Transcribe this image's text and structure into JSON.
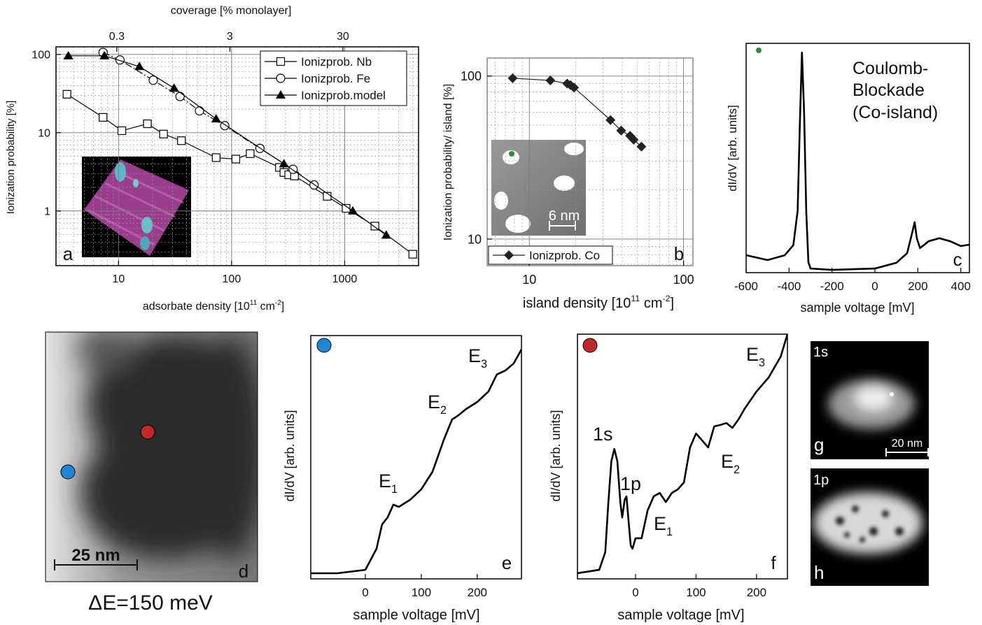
{
  "chart_data": [
    {
      "type": "line",
      "xscale": "log",
      "yscale": "log",
      "x2label": "coverage [% monolayer]",
      "xlabel_parts": [
        "adsorbate density [10",
        "11",
        " cm",
        "-2",
        "]"
      ],
      "ylabel": "Ionization probability [%]",
      "panel_label": "a",
      "xlim": [
        2.8,
        4500
      ],
      "ylim": [
        0.2,
        125
      ],
      "xticks": [
        10,
        100,
        1000
      ],
      "yticks": [
        1,
        10,
        100
      ],
      "x2lim": [
        0.087,
        140
      ],
      "x2ticks": [
        0.3,
        3,
        30
      ],
      "grid": true,
      "legend": "upper right",
      "series": [
        {
          "name": "Ionizprob. Nb",
          "marker": "square",
          "color": "#000000",
          "x": [
            3.5,
            7.3,
            10.7,
            18,
            25,
            36,
            73,
            109,
            146,
            265,
            290,
            320,
            360,
            700,
            1030,
            1850,
            4000
          ],
          "values": [
            31,
            15.7,
            10.6,
            13,
            9.6,
            7.9,
            4.8,
            4.6,
            5.4,
            3.6,
            3.1,
            2.9,
            2.8,
            1.54,
            1.08,
            0.64,
            0.28
          ]
        },
        {
          "name": "Ionizprob. Fe",
          "marker": "circle",
          "color": "#000000",
          "x": [
            7.3,
            10.3,
            20.3,
            35,
            52,
            87,
            178,
            350,
            536
          ],
          "values": [
            106,
            85,
            46.8,
            29,
            19,
            12.3,
            6.3,
            3.4,
            2.15
          ]
        },
        {
          "name": "Ionizprob.model",
          "marker": "triangle",
          "color": "#000000",
          "x": [
            3.6,
            7.5,
            15.3,
            31,
            73,
            290,
            1180,
            2330
          ],
          "values": [
            96,
            96,
            70,
            37,
            15,
            4,
            1,
            0.49
          ]
        }
      ]
    },
    {
      "type": "line",
      "xscale": "log",
      "yscale": "log",
      "xlabel_parts": [
        "island density [10",
        "11",
        " cm",
        "-2",
        "]"
      ],
      "ylabel": "Ionization probability/ island [%]",
      "panel_label": "b",
      "inset_scale": "6 nm",
      "xlim": [
        5.33,
        115
      ],
      "ylim": [
        6.87,
        129
      ],
      "xticks": [
        10,
        100
      ],
      "yticks": [
        10,
        100
      ],
      "grid": true,
      "legend": "lower left",
      "series": [
        {
          "name": "Ionizprob. Co",
          "marker": "diamond",
          "color": "#222222",
          "x": [
            7.8,
            13.7,
            17.6,
            18.5,
            19.5,
            33.6,
            39.4,
            45,
            47.5,
            53.3
          ],
          "values": [
            97,
            94,
            90,
            88,
            85,
            53.7,
            46.3,
            43,
            40.7,
            36.9
          ]
        }
      ]
    },
    {
      "type": "line",
      "xlabel": "sample voltage [mV]",
      "ylabel": "dI/dV [arb. units]",
      "panel_label": "c",
      "annotations": [
        "Coulomb-",
        "Blockade",
        "(Co-island)"
      ],
      "xlim": [
        -600,
        440
      ],
      "ylim": [
        0,
        100
      ],
      "xticks": [
        -600,
        -400,
        -200,
        0,
        200,
        400
      ],
      "x": [
        -600,
        -500,
        -420,
        -380,
        -360,
        -350,
        -340,
        -330,
        -320,
        -310,
        -300,
        -200,
        0,
        100,
        150,
        175,
        185,
        195,
        210,
        250,
        300,
        350,
        400,
        440
      ],
      "series": [
        {
          "color": "#000000",
          "values": [
            7.6,
            5.5,
            7.6,
            12,
            27,
            64,
            96,
            70,
            27,
            4.6,
            1.8,
            1.2,
            1.8,
            4.3,
            8.5,
            18,
            22,
            15,
            10.7,
            13.7,
            15,
            13.7,
            11.6,
            12.2
          ]
        }
      ]
    },
    {
      "type": "line",
      "xlabel": "sample voltage [mV]",
      "ylabel": "dI/dV [arb. units]",
      "panel_label": "e",
      "annotations": [
        {
          "text": "E",
          "sub": "1"
        },
        {
          "text": "E",
          "sub": "2"
        },
        {
          "text": "E",
          "sub": "3"
        }
      ],
      "xlim": [
        -97.5,
        279
      ],
      "ylim": [
        0,
        100
      ],
      "xticks": [
        0,
        100,
        200
      ],
      "x": [
        -97,
        -50,
        0,
        10,
        20,
        30,
        40,
        50,
        60,
        80,
        100,
        120,
        140,
        155,
        165,
        180,
        200,
        220,
        235,
        250,
        265,
        279
      ],
      "series": [
        {
          "color": "#000000",
          "values": [
            2.3,
            2.3,
            3.7,
            8,
            12.4,
            22.4,
            25.3,
            30.5,
            29.6,
            32.5,
            36.8,
            44,
            57,
            65.5,
            67,
            69.8,
            72.7,
            77,
            84,
            85.6,
            88.5,
            94.3
          ]
        }
      ]
    },
    {
      "type": "line",
      "xlabel": "sample voltage [mV]",
      "ylabel": "dI/dV [arb. units]",
      "panel_label": "f",
      "annotations": [
        {
          "text": "1s"
        },
        {
          "text": "1p"
        },
        {
          "text": "E",
          "sub": "1"
        },
        {
          "text": "E",
          "sub": "2"
        },
        {
          "text": "E",
          "sub": "3"
        }
      ],
      "xlim": [
        -96,
        251
      ],
      "ylim": [
        0,
        100
      ],
      "xticks": [
        0,
        100,
        200
      ],
      "x": [
        -96,
        -60,
        -50,
        -45,
        -40,
        -35,
        -30,
        -25,
        -22,
        -18,
        -15,
        -12,
        -8,
        -5,
        0,
        10,
        20,
        30,
        40,
        50,
        60,
        70,
        80,
        90,
        100,
        110,
        120,
        130,
        140,
        150,
        160,
        170,
        180,
        200,
        220,
        240,
        251
      ],
      "series": [
        {
          "color": "#000000",
          "values": [
            2.3,
            3.7,
            10.9,
            30.9,
            48,
            53.1,
            48,
            30.9,
            25.1,
            32.3,
            33.7,
            25.1,
            13.7,
            12.3,
            16.6,
            16.6,
            28,
            33.7,
            35.1,
            31.4,
            35.1,
            36.6,
            39.4,
            53.7,
            59.4,
            56.6,
            53.7,
            62.3,
            62.9,
            63.7,
            61.7,
            65.1,
            69.4,
            76.6,
            82.3,
            90.9,
            100
          ]
        }
      ]
    }
  ],
  "images": {
    "d": {
      "scale_bar": "25 nm",
      "label": "d",
      "caption": "ΔE=150 meV"
    },
    "g": {
      "state": "1s",
      "label": "g",
      "scale_bar": "20 nm"
    },
    "h": {
      "state": "1p",
      "label": "h"
    }
  }
}
